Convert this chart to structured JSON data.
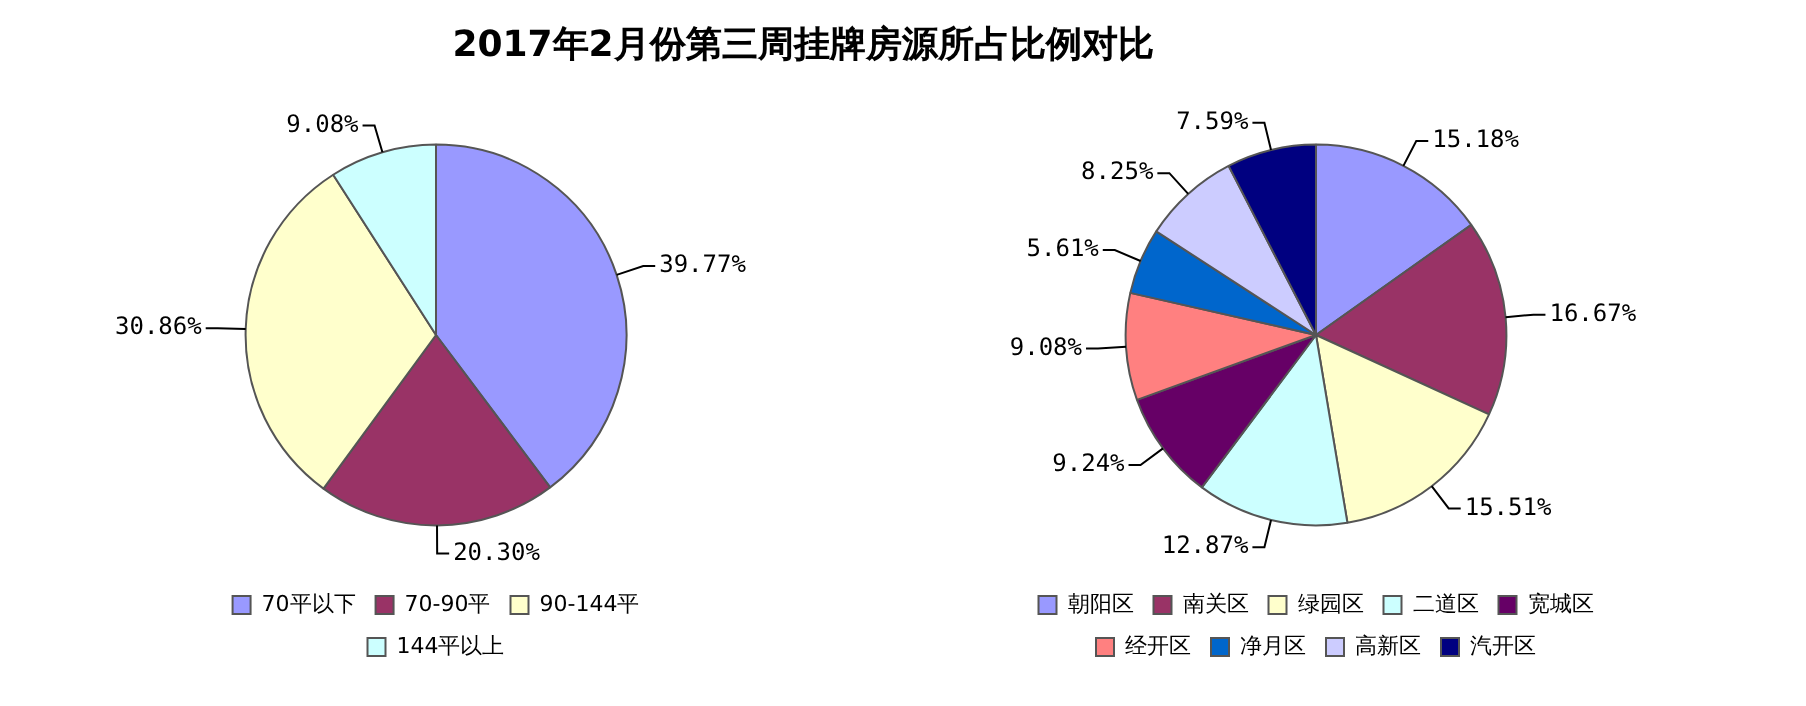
{
  "chart_data": [
    {
      "type": "pie",
      "title": "2017年2月份第三周挂牌房源所占比例对比",
      "categories": [
        "70平以下",
        "70-90平",
        "90-144平",
        "144平以上"
      ],
      "values": [
        39.77,
        20.3,
        30.86,
        9.08
      ],
      "colors": [
        "#9999ff",
        "#993366",
        "#ffffcc",
        "#ccffff"
      ],
      "value_labels": [
        "39.77%",
        "20.30%",
        "30.86%",
        "9.08%"
      ],
      "legend": "bottom"
    },
    {
      "type": "pie",
      "categories": [
        "朝阳区",
        "南关区",
        "绿园区",
        "二道区",
        "宽城区",
        "经开区",
        "净月区",
        "高新区",
        "汽开区"
      ],
      "values": [
        15.18,
        16.67,
        15.51,
        12.87,
        9.24,
        9.08,
        5.61,
        8.25,
        7.59
      ],
      "colors": [
        "#9999ff",
        "#993366",
        "#ffffcc",
        "#ccffff",
        "#660066",
        "#ff8080",
        "#0066cc",
        "#ccccff",
        "#000080"
      ],
      "value_labels": [
        "15.18%",
        "16.67%",
        "15.51%",
        "12.87%",
        "9.24%",
        "9.08%",
        "5.61%",
        "8.25%",
        "7.59%"
      ],
      "legend": "bottom"
    }
  ]
}
